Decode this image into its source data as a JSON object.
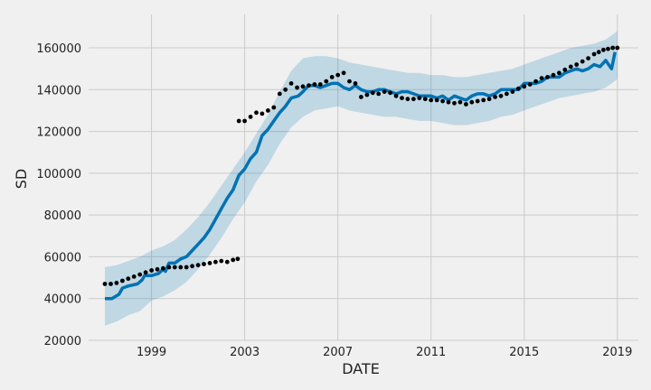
{
  "chart_data": {
    "type": "line",
    "title": "",
    "xlabel": "DATE",
    "ylabel": "SD",
    "xlim": [
      1996.3,
      2019.9
    ],
    "ylim": [
      20000,
      176000
    ],
    "x_ticks": [
      1999,
      2003,
      2007,
      2011,
      2015,
      2019
    ],
    "x_tick_labels": [
      "1999",
      "2003",
      "2007",
      "2011",
      "2015",
      "2019"
    ],
    "y_ticks": [
      20000,
      40000,
      60000,
      80000,
      100000,
      120000,
      140000,
      160000
    ],
    "y_tick_labels": [
      "20000",
      "40000",
      "60000",
      "80000",
      "100000",
      "120000",
      "140000",
      "160000"
    ],
    "grid": true,
    "colors": {
      "background": "#f0f0f0",
      "grid": "#cbcbcb",
      "forecast": "#0072b2",
      "interval": "#0072b2",
      "observed": "#000000"
    },
    "series": [
      {
        "kind": "interval",
        "x": [
          1997.0,
          1997.5,
          1998.0,
          1998.5,
          1999.0,
          1999.5,
          2000.0,
          2000.5,
          2001.0,
          2001.5,
          2002.0,
          2002.5,
          2003.0,
          2003.5,
          2004.0,
          2004.5,
          2005.0,
          2005.5,
          2006.0,
          2006.5,
          2007.0,
          2007.5,
          2008.0,
          2008.5,
          2009.0,
          2009.5,
          2010.0,
          2010.5,
          2011.0,
          2011.5,
          2012.0,
          2012.5,
          2013.0,
          2013.5,
          2014.0,
          2014.5,
          2015.0,
          2015.5,
          2016.0,
          2016.5,
          2017.0,
          2017.5,
          2018.0,
          2018.5,
          2019.0
        ],
        "lower": [
          27000,
          29000,
          32000,
          34000,
          39000,
          41000,
          44000,
          48000,
          54000,
          61000,
          69000,
          78000,
          86000,
          96000,
          104000,
          114000,
          122000,
          127000,
          130000,
          131000,
          132000,
          130000,
          129000,
          128000,
          127000,
          127000,
          126000,
          125000,
          125000,
          124000,
          123000,
          123000,
          124000,
          125000,
          127000,
          128000,
          130000,
          132000,
          134000,
          136000,
          137000,
          138000,
          139000,
          141000,
          145000
        ],
        "upper": [
          55000,
          56000,
          58000,
          60000,
          63000,
          65000,
          68000,
          73000,
          79000,
          86000,
          94000,
          102000,
          110000,
          119000,
          128000,
          139000,
          149000,
          155000,
          156000,
          156000,
          155000,
          153000,
          152000,
          151000,
          150000,
          149000,
          148000,
          148000,
          147000,
          147000,
          146000,
          146000,
          147000,
          148000,
          149000,
          150000,
          152000,
          154000,
          156000,
          158000,
          160000,
          161000,
          162000,
          164000,
          168000
        ]
      },
      {
        "kind": "forecast",
        "x": [
          1997.0,
          1997.3,
          1997.6,
          1997.75,
          1998.0,
          1998.4,
          1998.6,
          1998.7,
          1999.0,
          1999.3,
          1999.5,
          1999.6,
          1999.75,
          2000.0,
          2000.25,
          2000.5,
          2000.75,
          2001.0,
          2001.25,
          2001.5,
          2001.75,
          2002.0,
          2002.25,
          2002.5,
          2002.75,
          2003.0,
          2003.25,
          2003.5,
          2003.75,
          2004.0,
          2004.25,
          2004.5,
          2004.75,
          2005.0,
          2005.3,
          2005.5,
          2005.75,
          2006.0,
          2006.25,
          2006.5,
          2006.75,
          2007.0,
          2007.25,
          2007.5,
          2007.75,
          2008.0,
          2008.25,
          2008.5,
          2008.75,
          2009.0,
          2009.25,
          2009.5,
          2009.75,
          2010.0,
          2010.25,
          2010.5,
          2010.75,
          2011.0,
          2011.25,
          2011.5,
          2011.75,
          2012.0,
          2012.25,
          2012.5,
          2012.75,
          2013.0,
          2013.25,
          2013.5,
          2013.75,
          2014.0,
          2014.25,
          2014.5,
          2014.75,
          2015.0,
          2015.25,
          2015.5,
          2015.75,
          2016.0,
          2016.25,
          2016.5,
          2016.75,
          2017.0,
          2017.25,
          2017.5,
          2017.75,
          2018.0,
          2018.25,
          2018.5,
          2018.75,
          2018.9
        ],
        "y": [
          40000,
          40000,
          42000,
          45000,
          46000,
          47000,
          49000,
          51000,
          51000,
          52000,
          54000,
          53000,
          57000,
          57000,
          59000,
          60000,
          63000,
          66000,
          69000,
          73000,
          78000,
          83000,
          88000,
          92000,
          99000,
          102000,
          107000,
          110000,
          118000,
          121000,
          125000,
          129000,
          132000,
          136000,
          137000,
          139000,
          142000,
          142000,
          141000,
          142000,
          143000,
          143000,
          141000,
          140000,
          142000,
          140000,
          139000,
          139000,
          140000,
          140000,
          139000,
          138000,
          139000,
          139000,
          138000,
          137000,
          137000,
          137000,
          136000,
          137000,
          135000,
          137000,
          136000,
          135000,
          137000,
          138000,
          138000,
          137000,
          138000,
          140000,
          140000,
          140000,
          140000,
          143000,
          143000,
          143000,
          144000,
          146000,
          146000,
          146000,
          148000,
          149000,
          150000,
          149000,
          150000,
          152000,
          151000,
          154000,
          150000,
          158000
        ]
      },
      {
        "kind": "observed",
        "x": [
          1997.0,
          1997.25,
          1997.5,
          1997.75,
          1998.0,
          1998.25,
          1998.5,
          1998.75,
          1999.0,
          1999.25,
          1999.5,
          1999.75,
          2000.0,
          2000.25,
          2000.5,
          2000.75,
          2001.0,
          2001.25,
          2001.5,
          2001.75,
          2002.0,
          2002.25,
          2002.5,
          2002.7,
          2002.75,
          2003.0,
          2003.25,
          2003.5,
          2003.75,
          2004.0,
          2004.25,
          2004.5,
          2004.75,
          2005.0,
          2005.25,
          2005.5,
          2005.75,
          2006.0,
          2006.25,
          2006.5,
          2006.75,
          2007.0,
          2007.25,
          2007.5,
          2007.75,
          2008.0,
          2008.25,
          2008.5,
          2008.75,
          2009.0,
          2009.25,
          2009.5,
          2009.75,
          2010.0,
          2010.25,
          2010.5,
          2010.75,
          2011.0,
          2011.25,
          2011.5,
          2011.75,
          2012.0,
          2012.25,
          2012.5,
          2012.75,
          2013.0,
          2013.25,
          2013.5,
          2013.75,
          2014.0,
          2014.25,
          2014.5,
          2014.75,
          2015.0,
          2015.25,
          2015.5,
          2015.75,
          2016.0,
          2016.25,
          2016.5,
          2016.75,
          2017.0,
          2017.25,
          2017.5,
          2017.75,
          2018.0,
          2018.2,
          2018.4,
          2018.6,
          2018.8,
          2019.0
        ],
        "y": [
          47000,
          47000,
          47500,
          48500,
          49500,
          50500,
          51500,
          52500,
          53500,
          54000,
          54500,
          55000,
          55000,
          55000,
          55000,
          55500,
          56000,
          56500,
          57000,
          57500,
          58000,
          57500,
          58500,
          59000,
          125000,
          125000,
          127000,
          129000,
          128500,
          130000,
          131500,
          138000,
          140000,
          143000,
          141000,
          141500,
          142000,
          142500,
          142500,
          144000,
          146000,
          147000,
          148000,
          144000,
          143000,
          136500,
          137500,
          138500,
          138000,
          139000,
          138500,
          137000,
          136000,
          135500,
          135500,
          136000,
          135500,
          135000,
          135000,
          134500,
          134000,
          133500,
          134000,
          133000,
          134000,
          134500,
          135000,
          135500,
          136500,
          137000,
          138000,
          139000,
          140500,
          141500,
          142500,
          144000,
          145500,
          146000,
          147000,
          148000,
          149500,
          151000,
          152000,
          153500,
          155000,
          157000,
          158000,
          159000,
          159500,
          160000,
          160000
        ]
      }
    ]
  }
}
